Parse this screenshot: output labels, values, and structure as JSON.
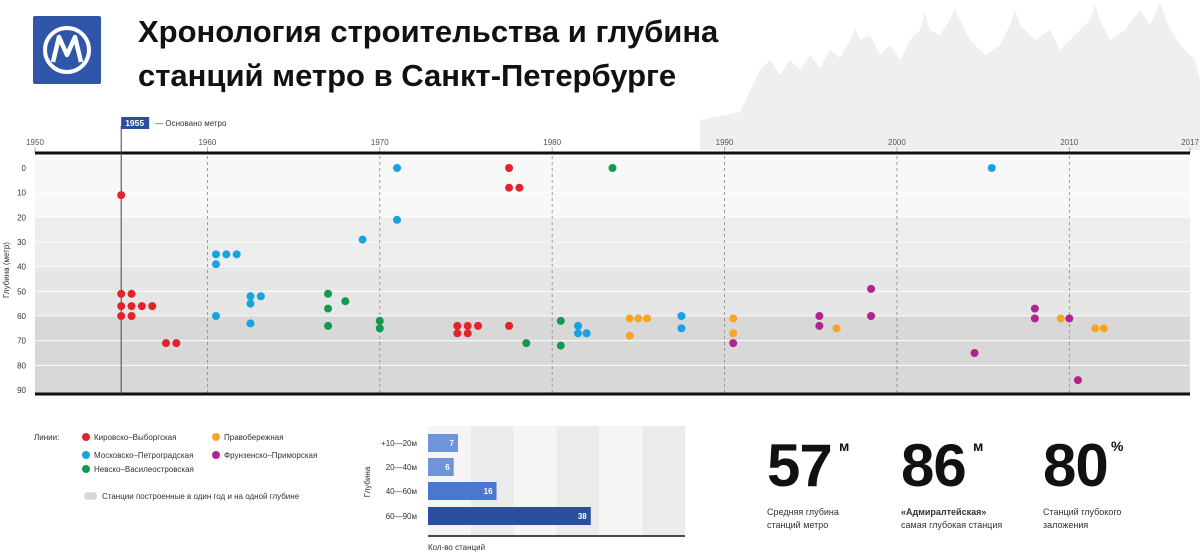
{
  "header": {
    "title_line1": "Хронология строительства и глубина",
    "title_line2": "станций метро в Санкт-Петербурге",
    "logo_icon": "spb-metro-logo-icon"
  },
  "colors": {
    "kirovsko": "#e3232c",
    "moskovsko": "#16a3e0",
    "nevsko": "#139a4f",
    "pravoberezh": "#f6a623",
    "frunzensko": "#b2238f",
    "grey_dot": "#d8d8d8",
    "hist_dark": "#2a4f9e",
    "hist_mid": "#4a78cc",
    "hist_light": "#6f94dc"
  },
  "chart_data": [
    {
      "type": "scatter",
      "ylabel": "Глубина (метр)",
      "xlim": [
        1950,
        2017
      ],
      "ylim": [
        0,
        90
      ],
      "x_ticks": [
        1950,
        1960,
        1970,
        1980,
        1990,
        2000,
        2010,
        2017
      ],
      "y_ticks": [
        0,
        10,
        20,
        30,
        40,
        50,
        60,
        70,
        80,
        90
      ],
      "founded_marker": {
        "year": 1955,
        "label": "1955",
        "text": "— Основано метро"
      },
      "series": [
        {
          "name": "Кировско–Выборгская",
          "color_key": "kirovsko",
          "points": [
            [
              1955,
              11
            ],
            [
              1955,
              51
            ],
            [
              1955.6,
              51
            ],
            [
              1955,
              56
            ],
            [
              1955.6,
              56
            ],
            [
              1956.2,
              56
            ],
            [
              1956.8,
              56
            ],
            [
              1955,
              60
            ],
            [
              1955.6,
              60
            ],
            [
              1957.6,
              71
            ],
            [
              1958.2,
              71
            ],
            [
              1977.5,
              0
            ],
            [
              1977.5,
              8
            ],
            [
              1978.1,
              8
            ],
            [
              1974.5,
              64
            ],
            [
              1975.1,
              64
            ],
            [
              1975.7,
              64
            ],
            [
              1974.5,
              67
            ],
            [
              1975.1,
              67
            ],
            [
              1977.5,
              64
            ]
          ]
        },
        {
          "name": "Московско–Петроградская",
          "color_key": "moskovsko",
          "points": [
            [
              1960.5,
              35
            ],
            [
              1961.1,
              35
            ],
            [
              1961.7,
              35
            ],
            [
              1960.5,
              39
            ],
            [
              1960.5,
              60
            ],
            [
              1962.5,
              52
            ],
            [
              1963.1,
              52
            ],
            [
              1962.5,
              55
            ],
            [
              1962.5,
              63
            ],
            [
              1969,
              29
            ],
            [
              1971,
              0
            ],
            [
              1971,
              21
            ],
            [
              1981.5,
              64
            ],
            [
              1981.5,
              67
            ],
            [
              1982,
              67
            ],
            [
              1987.5,
              60
            ],
            [
              1987.5,
              65
            ],
            [
              2005.5,
              0
            ]
          ]
        },
        {
          "name": "Невско–Василеостровская",
          "color_key": "nevsko",
          "points": [
            [
              1967,
              51
            ],
            [
              1967,
              57
            ],
            [
              1968,
              54
            ],
            [
              1967,
              64
            ],
            [
              1970,
              62
            ],
            [
              1970,
              65
            ],
            [
              1978.5,
              71
            ],
            [
              1980.5,
              62
            ],
            [
              1980.5,
              72
            ],
            [
              1983.5,
              0
            ]
          ]
        },
        {
          "name": "Правобережная",
          "color_key": "pravoberezh",
          "points": [
            [
              1984.5,
              61
            ],
            [
              1985,
              61
            ],
            [
              1985.5,
              61
            ],
            [
              1984.5,
              68
            ],
            [
              1990.5,
              61
            ],
            [
              1990.5,
              67
            ],
            [
              1996.5,
              65
            ],
            [
              2009.5,
              61
            ],
            [
              2011.5,
              65
            ],
            [
              2012,
              65
            ]
          ]
        },
        {
          "name": "Фрунзенско–Приморская",
          "color_key": "frunzensko",
          "points": [
            [
              1990.5,
              71
            ],
            [
              1995.5,
              60
            ],
            [
              1995.5,
              64
            ],
            [
              1998.5,
              49
            ],
            [
              1998.5,
              60
            ],
            [
              2004.5,
              75
            ],
            [
              2008,
              57
            ],
            [
              2008,
              61
            ],
            [
              2010,
              61
            ],
            [
              2010.5,
              86
            ]
          ]
        }
      ]
    },
    {
      "type": "bar",
      "ylabel": "Глубина",
      "xlabel": "Кол-во станций",
      "categories": [
        "+10—20м",
        "20—40м",
        "40—60м",
        "60—90м"
      ],
      "values": [
        7,
        6,
        16,
        38
      ],
      "xlim": [
        0,
        60
      ]
    }
  ],
  "legend": {
    "title": "Линии:",
    "items": [
      {
        "label": "Кировско–Выборгская",
        "color_key": "kirovsko"
      },
      {
        "label": "Правобережная",
        "color_key": "pravoberezh"
      },
      {
        "label": "Московско–Петроградская",
        "color_key": "moskovsko"
      },
      {
        "label": "Фрунзенско–Приморская",
        "color_key": "frunzensko"
      },
      {
        "label": "Невско–Василеостровская",
        "color_key": "nevsko"
      }
    ],
    "grey_note": "Станции построенные в один год и на одной глубине"
  },
  "stats": [
    {
      "value": "57",
      "unit": "м",
      "caption_line1": "Средняя глубина",
      "caption_line2": "станций метро"
    },
    {
      "value": "86",
      "unit": "м",
      "caption_line1": "«Адмиралтейская»",
      "caption_line2": "самая глубокая станция"
    },
    {
      "value": "80",
      "unit": "%",
      "caption_line1": "Станций глубокого",
      "caption_line2": "заложения"
    }
  ]
}
